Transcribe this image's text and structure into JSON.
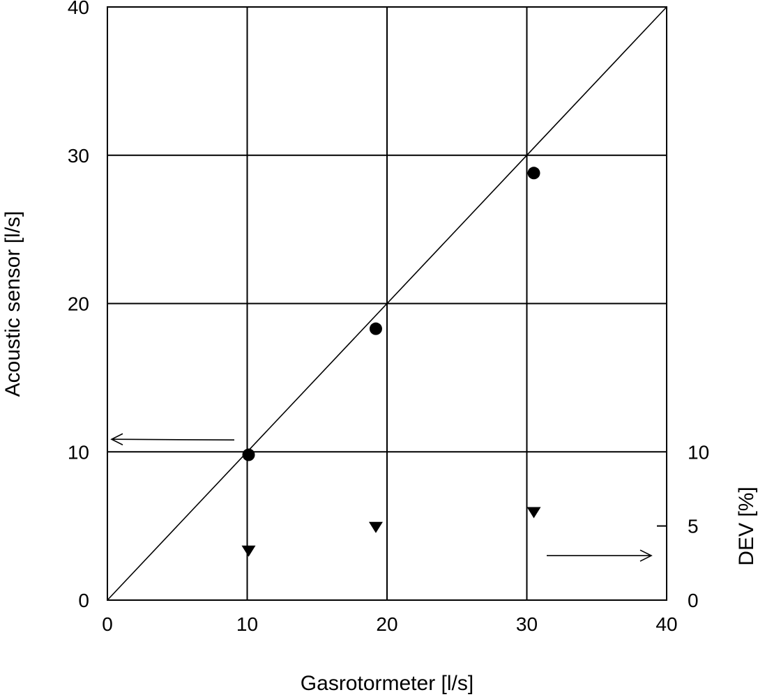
{
  "chart_data": {
    "type": "scatter",
    "title": "",
    "xlabel": "Gasrotormeter  [l/s]",
    "ylabel": "Acoustic sensor [l/s]",
    "y2label": "DEV [%]",
    "xlim": [
      0,
      40
    ],
    "ylim": [
      0,
      40
    ],
    "y2lim": [
      0,
      20
    ],
    "xticks": [
      "0",
      "10",
      "20",
      "30",
      "40"
    ],
    "yticks": [
      "0",
      "10",
      "20",
      "30",
      "40"
    ],
    "y2ticks": [
      "0",
      "5",
      "10"
    ],
    "grid": true,
    "reference_line": {
      "from": [
        0,
        0
      ],
      "to": [
        40,
        40
      ]
    },
    "series": [
      {
        "axis": "left",
        "marker": "circle",
        "x": [
          10.1,
          19.2,
          30.5
        ],
        "y": [
          9.8,
          18.3,
          28.8
        ]
      },
      {
        "axis": "right",
        "marker": "triangle-down",
        "x": [
          10.1,
          19.2,
          30.5
        ],
        "y": [
          3.3,
          4.9,
          5.9
        ]
      }
    ],
    "annotations": [
      {
        "type": "arrow",
        "points_to": "left-axis"
      },
      {
        "type": "arrow",
        "points_to": "right-axis"
      }
    ]
  }
}
